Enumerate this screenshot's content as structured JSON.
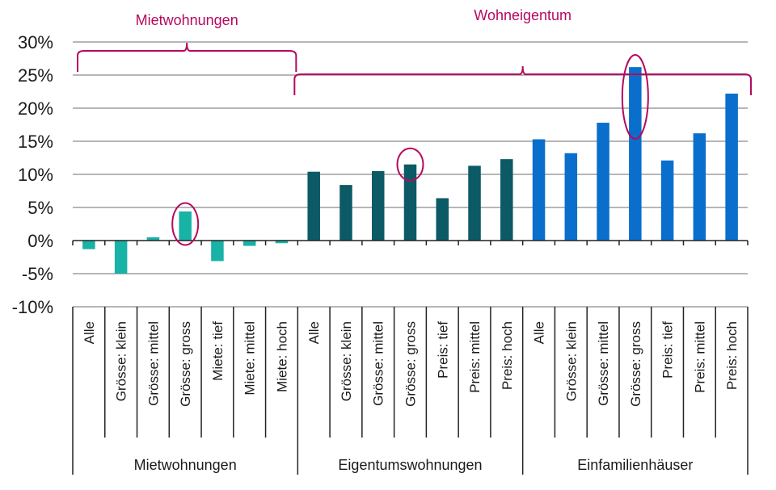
{
  "chart_data": {
    "type": "bar",
    "title": "",
    "xlabel": "",
    "ylabel": "",
    "ylim": [
      -10,
      30
    ],
    "y_ticks": [
      30,
      25,
      20,
      15,
      10,
      5,
      0,
      -5,
      -10
    ],
    "y_tick_format": "%",
    "grid": true,
    "legend": "none",
    "groups": [
      {
        "name": "Mietwohnungen",
        "color": "#19b2a6",
        "categories": [
          "Alle",
          "Grösse: klein",
          "Grösse: mittel",
          "Grösse: gross",
          "Miete: tief",
          "Miete: mittel",
          "Miete: hoch"
        ],
        "values": [
          -1.3,
          -5.0,
          0.5,
          4.4,
          -3.1,
          -0.8,
          -0.4
        ],
        "highlighted": [
          "Grösse: gross"
        ]
      },
      {
        "name": "Eigentumswohnungen",
        "color": "#0b5a66",
        "categories": [
          "Alle",
          "Grösse: klein",
          "Grösse: mittel",
          "Grösse: gross",
          "Preis: tief",
          "Preis: mittel",
          "Preis: hoch"
        ],
        "values": [
          10.4,
          8.4,
          10.5,
          11.5,
          6.4,
          11.3,
          12.3
        ],
        "highlighted": [
          "Grösse: gross"
        ]
      },
      {
        "name": "Einfamilienhäuser",
        "color": "#0a6fcc",
        "categories": [
          "Alle",
          "Grösse: klein",
          "Grösse: mittel",
          "Grösse: gross",
          "Preis: tief",
          "Preis: mittel",
          "Preis: hoch"
        ],
        "values": [
          15.3,
          13.2,
          17.8,
          26.2,
          12.1,
          16.2,
          22.2
        ],
        "highlighted": [
          "Grösse: gross"
        ]
      }
    ],
    "annotations": [
      {
        "label": "Mietwohnungen",
        "spans_groups": [
          "Mietwohnungen"
        ],
        "type": "brace"
      },
      {
        "label": "Wohneigentum",
        "spans_groups": [
          "Eigentumswohnungen",
          "Einfamilienhäuser"
        ],
        "type": "brace"
      }
    ],
    "annotation_color": "#b5095f"
  }
}
